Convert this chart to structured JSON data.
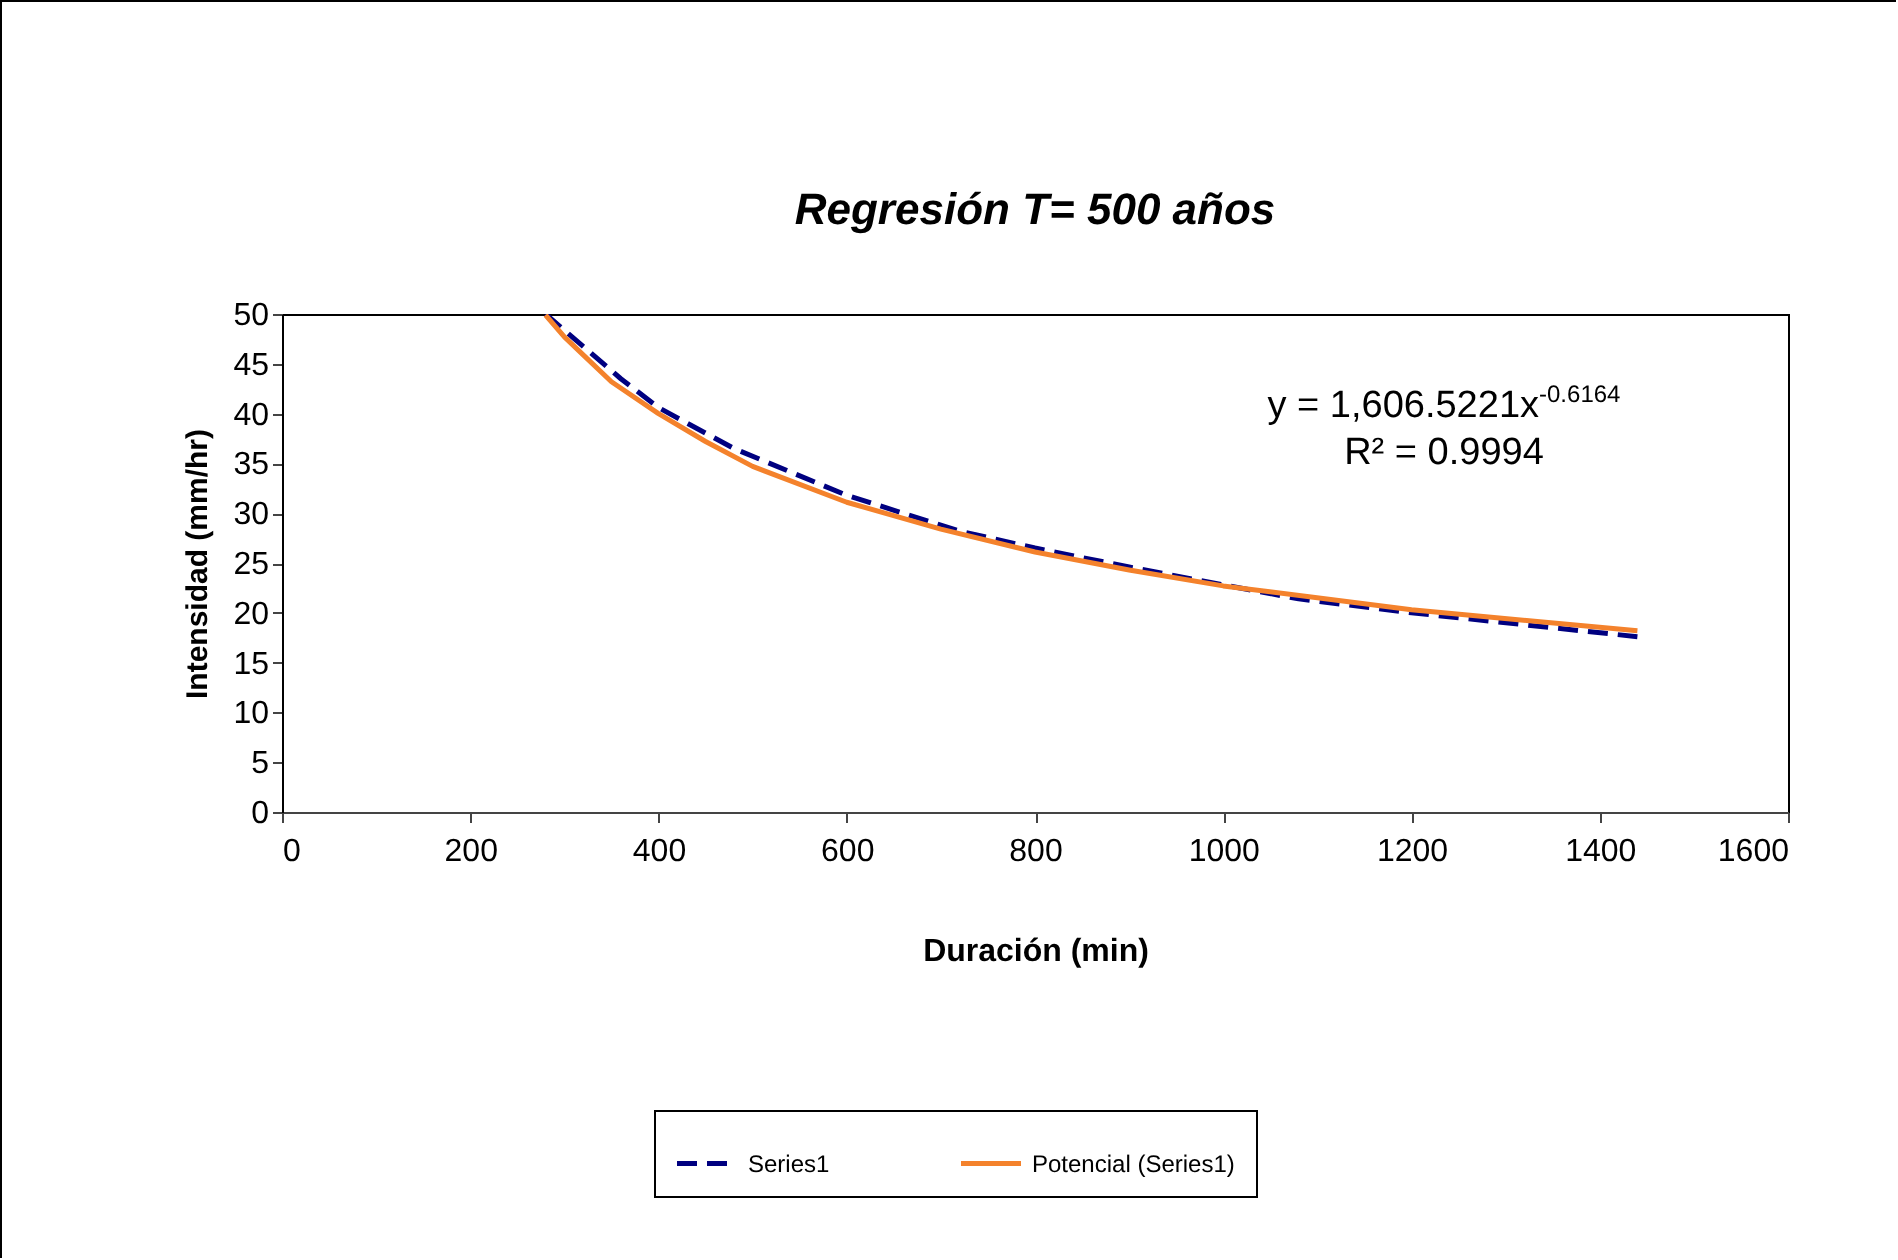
{
  "chart_data": {
    "type": "line",
    "title": "Regresión T= 500 años",
    "xlabel": "Duración (min)",
    "ylabel": "Intensidad (mm/hr)",
    "xlim": [
      0,
      1600
    ],
    "xticks": [
      0,
      200,
      400,
      600,
      800,
      1000,
      1200,
      1400,
      1600
    ],
    "ylim": [
      0,
      50
    ],
    "yticks": [
      0,
      5,
      10,
      15,
      20,
      25,
      30,
      35,
      40,
      45,
      50
    ],
    "grid": false,
    "legend": "bottom",
    "marker": "none",
    "series": [
      {
        "name": "Series1",
        "color": "#000080",
        "line_style": "dashed",
        "x": [
          280,
          360,
          400,
          480,
          600,
          720,
          800,
          900,
          1000,
          1080,
          1200,
          1320,
          1440
        ],
        "values": [
          50,
          43.5,
          40.6,
          36.5,
          31.8,
          28.2,
          26.5,
          24.6,
          22.8,
          21.4,
          20.0,
          18.8,
          17.6
        ]
      },
      {
        "name": "Potencial (Series1)",
        "color": "#f4822c",
        "line_style": "solid",
        "x": [
          280,
          300,
          320,
          350,
          400,
          450,
          500,
          600,
          700,
          800,
          900,
          1000,
          1200,
          1440
        ],
        "values": [
          49.9,
          47.7,
          45.9,
          43.2,
          40.0,
          37.2,
          34.7,
          31.1,
          28.4,
          26.1,
          24.3,
          22.7,
          20.3,
          18.2
        ]
      }
    ],
    "annotations": [
      "y = 1,606.5221x$^{-0.6164}$",
      "R² = 0.9994"
    ]
  }
}
